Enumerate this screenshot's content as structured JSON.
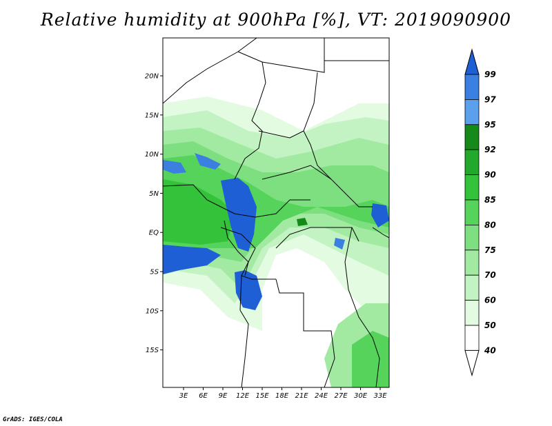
{
  "title": "Relative humidity at 900hPa [%], VT: 2019090900",
  "footer": "GrADS: IGES/COLA",
  "map": {
    "lon_ticks": [
      "3E",
      "6E",
      "9E",
      "12E",
      "15E",
      "18E",
      "21E",
      "24E",
      "27E",
      "30E",
      "33E"
    ],
    "lat_ticks": [
      "20N",
      "15N",
      "10N",
      "5N",
      "EQ",
      "5S",
      "10S",
      "15S"
    ]
  },
  "colorbar": {
    "levels": [
      "99",
      "97",
      "95",
      "92",
      "90",
      "85",
      "80",
      "75",
      "70",
      "60",
      "50",
      "40"
    ],
    "colors": [
      "#1f5fd6",
      "#3b7fe0",
      "#5aa0ec",
      "#158a1a",
      "#22a82a",
      "#34c23a",
      "#55d35a",
      "#7ddf80",
      "#a2eaa2",
      "#c4f3c3",
      "#e2fbe1",
      "#ffffff"
    ]
  }
}
